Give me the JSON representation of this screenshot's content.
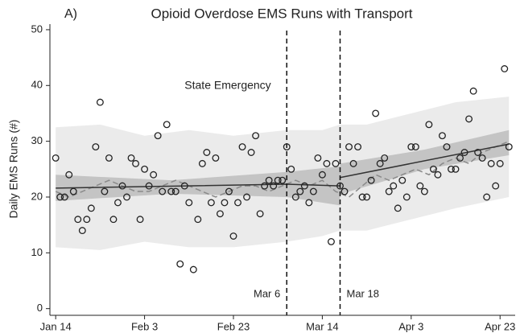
{
  "chart_data": {
    "type": "scatter",
    "panel": "A)",
    "title": "Opioid Overdose EMS Runs with Transport",
    "y_label": "Daily EMS Runs (#)",
    "annotation": "State Emergency",
    "x": [
      0,
      1,
      2,
      3,
      4,
      5,
      6,
      7,
      8,
      9,
      10,
      11,
      12,
      13,
      14,
      15,
      16,
      17,
      18,
      19,
      20,
      21,
      22,
      23,
      24,
      25,
      26,
      27,
      28,
      29,
      30,
      31,
      32,
      33,
      34,
      35,
      36,
      37,
      38,
      39,
      40,
      41,
      42,
      43,
      44,
      45,
      46,
      47,
      48,
      49,
      50,
      51,
      52,
      53,
      54,
      55,
      56,
      57,
      58,
      59,
      60,
      61,
      62,
      63,
      64,
      65,
      66,
      67,
      68,
      69,
      70,
      71,
      72,
      73,
      74,
      75,
      76,
      77,
      78,
      79,
      80,
      81,
      82,
      83,
      84,
      85,
      86,
      87,
      88,
      89,
      90,
      91,
      92,
      93,
      94,
      95,
      96,
      97,
      98,
      99,
      100,
      101,
      102
    ],
    "values": [
      27,
      20,
      20,
      24,
      21,
      16,
      14,
      16,
      18,
      29,
      37,
      21,
      27,
      16,
      19,
      22,
      20,
      27,
      26,
      16,
      25,
      22,
      24,
      31,
      21,
      33,
      21,
      21,
      8,
      22,
      19,
      7,
      16,
      26,
      28,
      19,
      27,
      17,
      19,
      21,
      13,
      19,
      29,
      20,
      28,
      31,
      17,
      22,
      23,
      22,
      23,
      23,
      29,
      25,
      20,
      21,
      22,
      19,
      21,
      27,
      24,
      26,
      12,
      26,
      22,
      21,
      29,
      26,
      29,
      20,
      20,
      23,
      35,
      26,
      27,
      21,
      22,
      18,
      23,
      20,
      29,
      29,
      22,
      21,
      33,
      25,
      24,
      31,
      29,
      25,
      25,
      27,
      28,
      34,
      39,
      28,
      27,
      20,
      26,
      22,
      26,
      43,
      29
    ],
    "color": "#222222",
    "moving_average": {
      "x": [
        0,
        3,
        6,
        9,
        12,
        15,
        18,
        21,
        24,
        27,
        30,
        33,
        36,
        39,
        42,
        45,
        48,
        51,
        54,
        57,
        60,
        63,
        66,
        69,
        72,
        75,
        78,
        81,
        84,
        87,
        90,
        93,
        96,
        99,
        102
      ],
      "values": [
        21,
        20,
        21,
        22,
        23,
        22,
        21,
        21,
        22,
        23,
        22,
        21,
        20,
        21,
        22,
        22,
        21,
        22,
        23,
        22,
        23,
        21,
        20,
        22,
        24,
        23,
        24,
        25,
        24,
        26,
        27,
        26,
        28,
        29,
        30
      ],
      "color": "#8a8a8a"
    },
    "fit": {
      "x": [
        0,
        52,
        64,
        null,
        64,
        102
      ],
      "values": [
        21.6,
        22.3,
        22,
        null,
        23.5,
        29.5
      ],
      "color": "#333333"
    },
    "prediction_band": {
      "x": [
        0,
        10,
        20,
        30,
        40,
        52,
        60,
        64,
        70,
        80,
        90,
        102
      ],
      "lower": [
        11,
        10.5,
        12,
        11,
        11,
        12,
        13,
        14,
        14,
        16,
        18,
        20
      ],
      "upper": [
        32.5,
        33,
        31,
        32,
        31,
        32,
        32,
        33,
        33,
        35,
        37,
        38
      ],
      "color": "#ebebeb"
    },
    "confidence_bands": [
      {
        "x": [
          0,
          26,
          52,
          64
        ],
        "lower": [
          19.3,
          20.6,
          20,
          18.5
        ],
        "upper": [
          24,
          23,
          24.5,
          25.5
        ],
        "color": "#c4c4c4"
      },
      {
        "x": [
          64,
          83,
          102
        ],
        "lower": [
          20.5,
          25,
          27.5
        ],
        "upper": [
          26,
          28.5,
          32
        ],
        "color": "#c4c4c4"
      }
    ],
    "vlines": [
      {
        "x": 52,
        "label": "Mar 6"
      },
      {
        "x": 64,
        "label": "Mar 18"
      }
    ],
    "xlim": [
      -1.3,
      103.4
    ],
    "xticks": [
      {
        "value": 0,
        "label": "Jan 14"
      },
      {
        "value": 20,
        "label": "Feb 3"
      },
      {
        "value": 40,
        "label": "Feb 23"
      },
      {
        "value": 60,
        "label": "Mar 14"
      },
      {
        "value": 80,
        "label": "Apr 3"
      },
      {
        "value": 100,
        "label": "Apr 23"
      }
    ],
    "ylim": [
      -1.2,
      51
    ],
    "yticks": [
      0,
      10,
      20,
      30,
      40,
      50
    ]
  }
}
